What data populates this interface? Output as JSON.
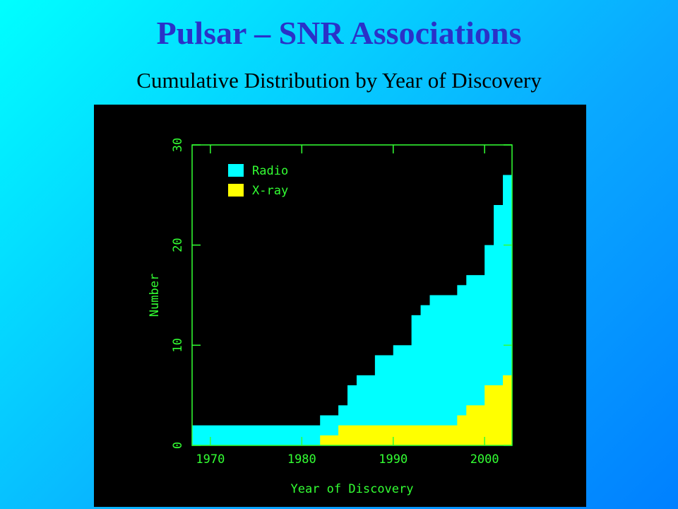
{
  "header": {
    "title": "Pulsar – SNR Associations",
    "subtitle": "Cumulative Distribution by Year of Discovery"
  },
  "chart_data": {
    "type": "histogram",
    "x_label": "Year of Discovery",
    "y_label": "Number",
    "bins": [
      1968,
      1982,
      1984,
      1985,
      1986,
      1988,
      1990,
      1992,
      1993,
      1994,
      1997,
      1998,
      2000,
      2001,
      2002,
      2003
    ],
    "series": [
      {
        "name": "Radio",
        "color": "#00ffff",
        "values": [
          2,
          3,
          4,
          6,
          7,
          9,
          10,
          13,
          14,
          15,
          16,
          17,
          20,
          24,
          27
        ]
      },
      {
        "name": "X-ray",
        "color": "#ffff00",
        "values": [
          0,
          1,
          2,
          2,
          2,
          2,
          2,
          2,
          2,
          2,
          3,
          4,
          6,
          6,
          7
        ]
      }
    ],
    "xlim": [
      1968,
      2003
    ],
    "ylim": [
      0,
      30
    ],
    "xticks": [
      1970,
      1980,
      1990,
      2000
    ],
    "yticks": [
      0,
      10,
      20,
      30
    ],
    "legend": "upper-left",
    "axis_color": "#33ff33"
  }
}
